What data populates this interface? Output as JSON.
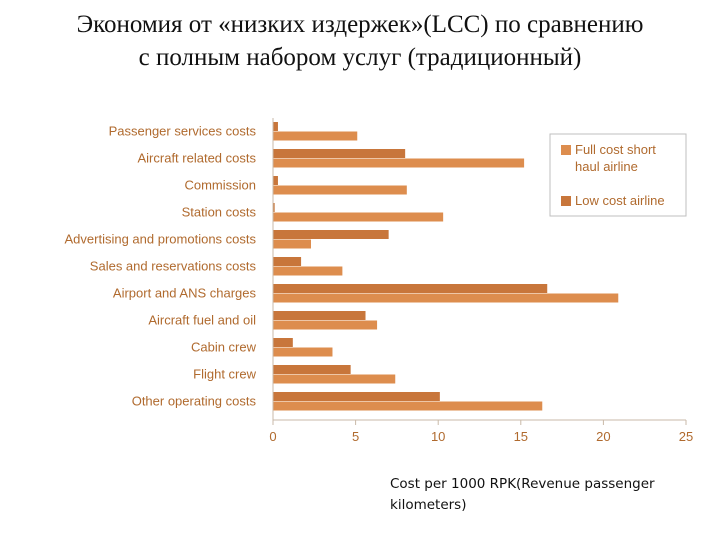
{
  "page": {
    "title_line1": "Экономия от «низких издержек»(LCC) по сравнению",
    "title_line2": "с полным набором услуг (традиционный)",
    "caption": "Cost per 1000 RPK(Revenue passenger kilometers)"
  },
  "chart_data": {
    "type": "bar",
    "orientation": "horizontal",
    "categories": [
      "Passenger services costs",
      "Aircraft related costs",
      "Commission",
      "Station costs",
      "Advertising and promotions costs",
      "Sales and reservations costs",
      "Airport and ANS charges",
      "Aircraft fuel and oil",
      "Cabin crew",
      "Flight crew",
      "Other operating costs"
    ],
    "series": [
      {
        "name": "Low cost airline",
        "color": "#c8763b",
        "values": [
          0.3,
          8.0,
          0.3,
          0.1,
          7.0,
          1.7,
          16.6,
          5.6,
          1.2,
          4.7,
          10.1
        ]
      },
      {
        "name": "Full cost short haul airline",
        "color": "#dd8d4e",
        "values": [
          5.1,
          15.2,
          8.1,
          10.3,
          2.3,
          4.2,
          20.9,
          6.3,
          3.6,
          7.4,
          16.3
        ]
      }
    ],
    "xlim": [
      0,
      25
    ],
    "xticks": [
      "0",
      "5",
      "10",
      "15",
      "20",
      "25"
    ],
    "legend": {
      "position": "top-right",
      "entries": [
        "Full cost short haul airline",
        "Low cost airline"
      ]
    },
    "grid": false
  }
}
